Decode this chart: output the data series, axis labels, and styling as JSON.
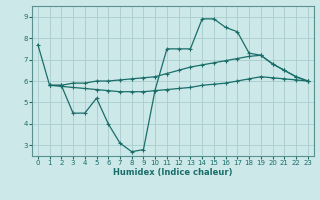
{
  "xlabel": "Humidex (Indice chaleur)",
  "background_color": "#cce8e8",
  "grid_color": "#aacccc",
  "line_color": "#1a6e6a",
  "xlim": [
    -0.5,
    23.5
  ],
  "ylim": [
    2.5,
    9.5
  ],
  "xticks": [
    0,
    1,
    2,
    3,
    4,
    5,
    6,
    7,
    8,
    9,
    10,
    11,
    12,
    13,
    14,
    15,
    16,
    17,
    18,
    19,
    20,
    21,
    22,
    23
  ],
  "yticks": [
    3,
    4,
    5,
    6,
    7,
    8,
    9
  ],
  "series1_x": [
    0,
    1,
    2,
    3,
    4,
    5,
    6,
    7,
    8,
    9,
    10,
    11,
    12,
    13,
    14,
    15,
    16,
    17,
    18,
    19,
    20,
    21,
    22,
    23
  ],
  "series1_y": [
    7.7,
    5.8,
    5.8,
    4.5,
    4.5,
    5.2,
    4.0,
    3.1,
    2.7,
    2.8,
    5.6,
    7.5,
    7.5,
    7.5,
    8.9,
    8.9,
    8.5,
    8.3,
    7.3,
    7.2,
    6.8,
    6.5,
    6.2,
    6.0
  ],
  "series2_x": [
    1,
    2,
    3,
    4,
    5,
    6,
    7,
    8,
    9,
    10,
    11,
    12,
    13,
    14,
    15,
    16,
    17,
    18,
    19,
    20,
    21,
    22,
    23
  ],
  "series2_y": [
    5.8,
    5.8,
    5.9,
    5.9,
    6.0,
    6.0,
    6.05,
    6.1,
    6.15,
    6.2,
    6.35,
    6.5,
    6.65,
    6.75,
    6.85,
    6.95,
    7.05,
    7.15,
    7.2,
    6.8,
    6.5,
    6.2,
    6.0
  ],
  "series3_x": [
    1,
    2,
    3,
    4,
    5,
    6,
    7,
    8,
    9,
    10,
    11,
    12,
    13,
    14,
    15,
    16,
    17,
    18,
    19,
    20,
    21,
    22,
    23
  ],
  "series3_y": [
    5.8,
    5.75,
    5.7,
    5.65,
    5.6,
    5.55,
    5.5,
    5.5,
    5.5,
    5.55,
    5.6,
    5.65,
    5.7,
    5.8,
    5.85,
    5.9,
    6.0,
    6.1,
    6.2,
    6.15,
    6.1,
    6.05,
    6.0
  ]
}
